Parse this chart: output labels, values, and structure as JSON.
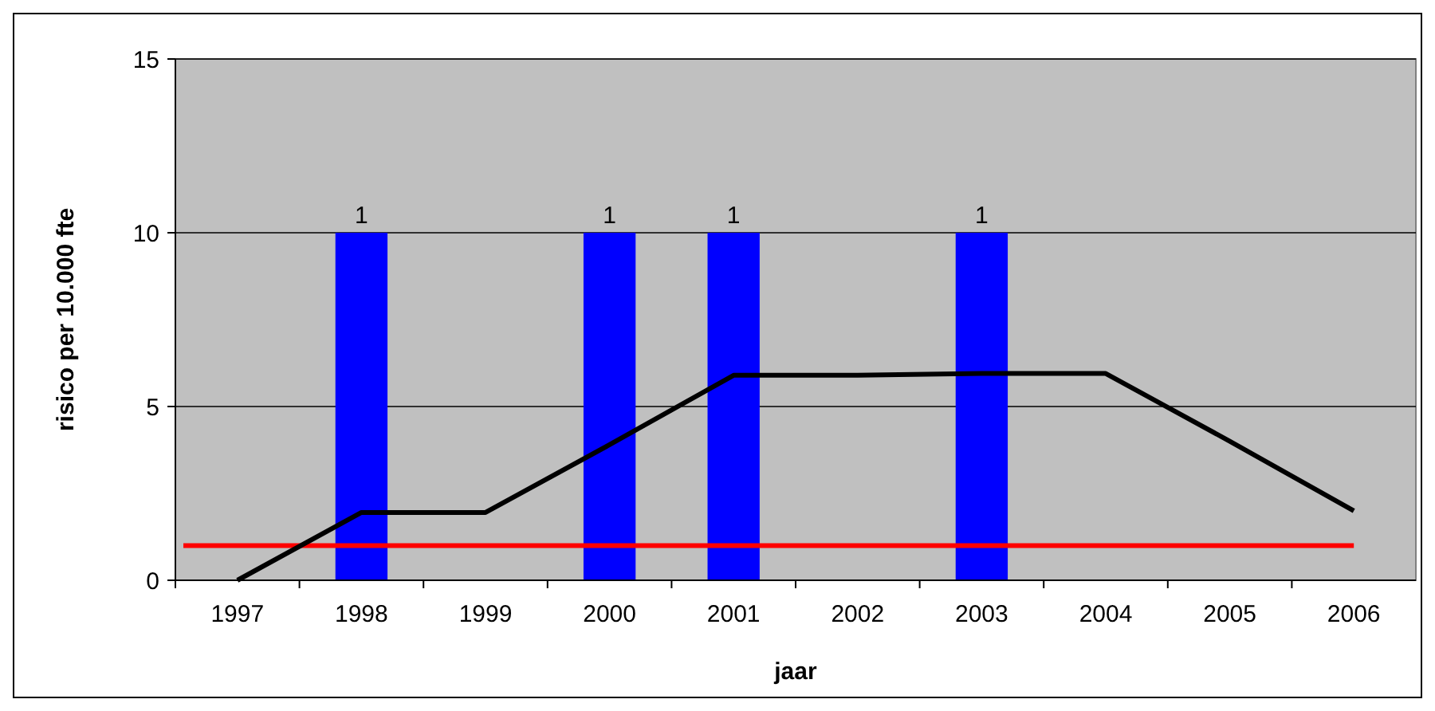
{
  "chart_data": {
    "type": "bar",
    "xlabel": "jaar",
    "ylabel": "risico per 10.000 fte",
    "categories": [
      "1997",
      "1998",
      "1999",
      "2000",
      "2001",
      "2002",
      "2003",
      "2004",
      "2005",
      "2006"
    ],
    "series": [
      {
        "color": "#0000ff",
        "axis": "y2",
        "values": [
          null,
          1,
          null,
          1,
          1,
          null,
          1,
          null,
          null,
          null
        ],
        "value_labels": [
          null,
          "1",
          null,
          "1",
          "1",
          null,
          "1",
          null,
          null,
          null
        ]
      },
      {
        "type": "line",
        "color": "#000000",
        "values": [
          0,
          1.95,
          1.95,
          3.9,
          5.9,
          5.9,
          5.95,
          5.95,
          4,
          2
        ]
      }
    ],
    "ref_lines": [
      {
        "axis": "y",
        "value": 1,
        "color": "#ff0000"
      }
    ],
    "ylim": [
      0,
      15
    ],
    "yticks": [
      0,
      5,
      10,
      15
    ],
    "y2lim": [
      0,
      1.5
    ],
    "grid": "y"
  }
}
